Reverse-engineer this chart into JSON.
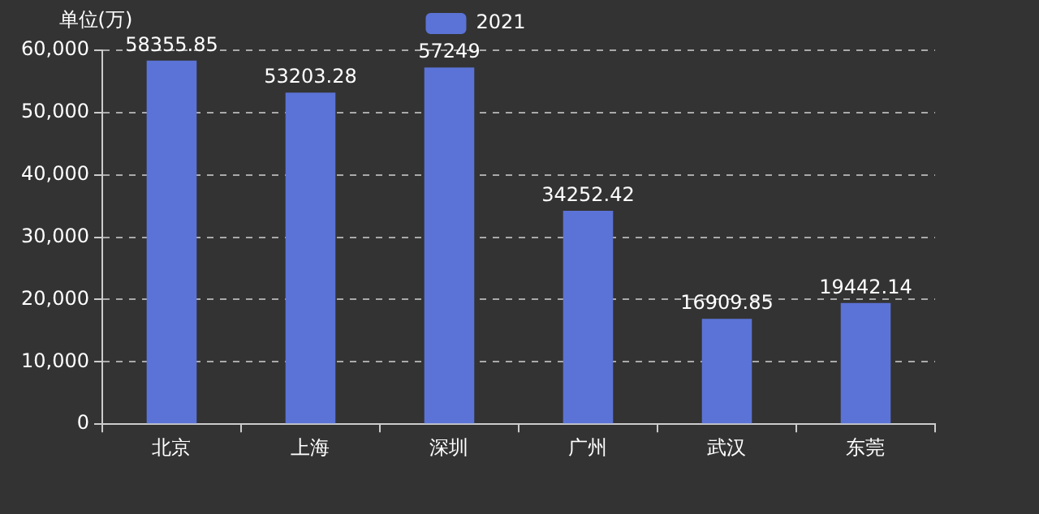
{
  "chart_data": {
    "type": "bar",
    "ylabel": "单位(万)",
    "categories": [
      "北京",
      "上海",
      "深圳",
      "广州",
      "武汉",
      "东莞"
    ],
    "series": [
      {
        "name": "2021",
        "color": "#5b73d6",
        "values": [
          58355.85,
          53203.28,
          57249,
          34252.42,
          16909.85,
          19442.14
        ]
      }
    ],
    "ylim": [
      0,
      60000
    ],
    "yticks": [
      0,
      {
        "value": 10000,
        "label": "10,000"
      },
      {
        "value": 20000,
        "label": "20,000"
      },
      {
        "value": 30000,
        "label": "30,000"
      },
      {
        "value": 40000,
        "label": "40,000"
      },
      {
        "value": 50000,
        "label": "50,000"
      },
      {
        "value": 60000,
        "label": "60,000"
      }
    ],
    "grid": "y",
    "legend": "top",
    "data_labels": true
  }
}
